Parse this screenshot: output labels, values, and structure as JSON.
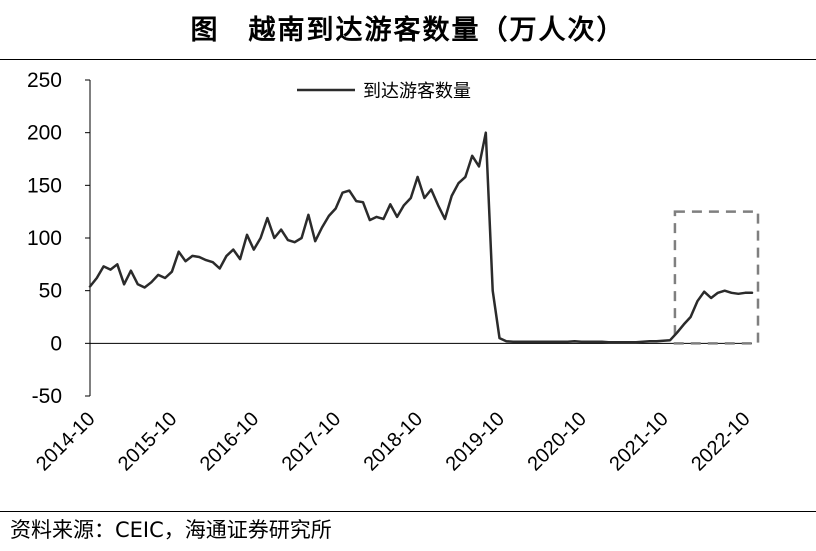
{
  "header": {
    "title": "图　越南到达游客数量（万人次）"
  },
  "footer": {
    "source": "资料来源：CEIC，海通证券研究所"
  },
  "chart_data": {
    "type": "line",
    "title": "图　越南到达游客数量（万人次）",
    "xlabel": "",
    "ylabel": "",
    "ylim": [
      -50,
      250
    ],
    "yticks": [
      250,
      200,
      150,
      100,
      50,
      0,
      -50
    ],
    "x_tick_labels": [
      "2014-10",
      "2015-10",
      "2016-10",
      "2017-10",
      "2018-10",
      "2019-10",
      "2020-10",
      "2021-10",
      "2022-10"
    ],
    "legend": {
      "position": "top-center",
      "entries": [
        "到达游客数量"
      ]
    },
    "grid": false,
    "series": [
      {
        "name": "到达游客数量",
        "color": "#2b2b2b",
        "x": [
          "2014-10",
          "2014-11",
          "2014-12",
          "2015-01",
          "2015-02",
          "2015-03",
          "2015-04",
          "2015-05",
          "2015-06",
          "2015-07",
          "2015-08",
          "2015-09",
          "2015-10",
          "2015-11",
          "2015-12",
          "2016-01",
          "2016-02",
          "2016-03",
          "2016-04",
          "2016-05",
          "2016-06",
          "2016-07",
          "2016-08",
          "2016-09",
          "2016-10",
          "2016-11",
          "2016-12",
          "2017-01",
          "2017-02",
          "2017-03",
          "2017-04",
          "2017-05",
          "2017-06",
          "2017-07",
          "2017-08",
          "2017-09",
          "2017-10",
          "2017-11",
          "2017-12",
          "2018-01",
          "2018-02",
          "2018-03",
          "2018-04",
          "2018-05",
          "2018-06",
          "2018-07",
          "2018-08",
          "2018-09",
          "2018-10",
          "2018-11",
          "2018-12",
          "2019-01",
          "2019-02",
          "2019-03",
          "2019-04",
          "2019-05",
          "2019-06",
          "2019-07",
          "2019-08",
          "2019-09",
          "2019-10",
          "2019-11",
          "2019-12",
          "2020-01",
          "2020-02",
          "2020-03",
          "2020-04",
          "2020-05",
          "2020-06",
          "2020-07",
          "2020-08",
          "2020-09",
          "2020-10",
          "2020-11",
          "2020-12",
          "2021-01",
          "2021-02",
          "2021-03",
          "2021-04",
          "2021-05",
          "2021-06",
          "2021-07",
          "2021-08",
          "2021-09",
          "2021-10",
          "2021-11",
          "2021-12",
          "2022-01",
          "2022-02",
          "2022-03",
          "2022-04",
          "2022-05",
          "2022-06",
          "2022-07",
          "2022-08",
          "2022-09",
          "2022-10",
          "2022-11"
        ],
        "values": [
          54,
          62,
          73,
          70,
          75,
          56,
          69,
          56,
          53,
          58,
          65,
          62,
          68,
          87,
          78,
          83,
          82,
          79,
          77,
          71,
          83,
          89,
          80,
          103,
          89,
          100,
          119,
          100,
          108,
          98,
          96,
          100,
          122,
          97,
          110,
          121,
          128,
          143,
          145,
          135,
          134,
          117,
          120,
          118,
          132,
          120,
          131,
          138,
          158,
          138,
          146,
          131,
          118,
          140,
          152,
          158,
          178,
          168,
          200,
          50,
          5,
          2,
          1.5,
          1.5,
          1.5,
          1.5,
          1.5,
          1.5,
          1.5,
          1.5,
          1.5,
          2,
          1.5,
          1.5,
          1.5,
          1.5,
          1,
          1,
          1,
          1,
          1,
          1.5,
          2,
          2,
          2.5,
          3,
          10,
          18,
          25,
          40,
          49,
          43,
          48,
          50,
          48,
          47,
          48,
          48
        ]
      }
    ],
    "annotation": {
      "type": "dashed-box",
      "color": "#7f7f7f",
      "x_from": "2021-12",
      "x_to": "2022-11",
      "y_from": 0,
      "y_to": 125
    }
  }
}
